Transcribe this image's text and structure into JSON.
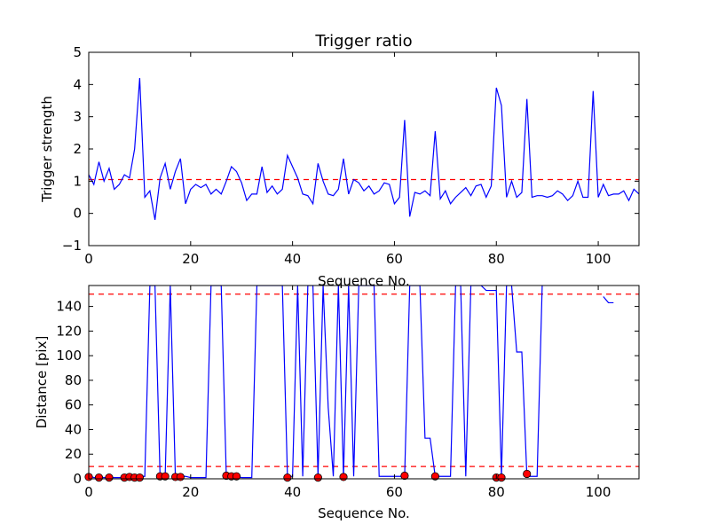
{
  "chart_data": [
    {
      "type": "line",
      "title": "Trigger ratio",
      "xlabel": "Sequence No.",
      "ylabel": "Trigger strength",
      "xlim": [
        0,
        108
      ],
      "ylim": [
        -1,
        5
      ],
      "xticks": [
        "0",
        "20",
        "40",
        "60",
        "80",
        "100"
      ],
      "yticks": [
        "−1",
        "0",
        "1",
        "2",
        "3",
        "4",
        "5"
      ],
      "grid": false,
      "threshold_line": {
        "y": 1.05,
        "color": "#ff0000",
        "style": "dashed"
      },
      "series": [
        {
          "color": "#0000ff",
          "x": [
            0,
            1,
            2,
            3,
            4,
            5,
            6,
            7,
            8,
            9,
            10,
            11,
            12,
            13,
            14,
            15,
            16,
            17,
            18,
            19,
            20,
            21,
            22,
            23,
            24,
            25,
            26,
            27,
            28,
            29,
            30,
            31,
            32,
            33,
            34,
            35,
            36,
            37,
            38,
            39,
            40,
            41,
            42,
            43,
            44,
            45,
            46,
            47,
            48,
            49,
            50,
            51,
            52,
            53,
            54,
            55,
            56,
            57,
            58,
            59,
            60,
            61,
            62,
            63,
            64,
            65,
            66,
            67,
            68,
            69,
            70,
            71,
            72,
            73,
            74,
            75,
            76,
            77,
            78,
            79,
            80,
            81,
            82,
            83,
            84,
            85,
            86,
            87,
            88,
            89,
            90,
            91,
            92,
            93,
            94,
            95,
            96,
            97,
            98,
            99,
            100,
            101,
            102,
            103,
            104,
            105,
            106,
            107,
            108
          ],
          "y": [
            1.2,
            0.9,
            1.6,
            1.0,
            1.4,
            0.75,
            0.9,
            1.2,
            1.1,
            2.0,
            4.2,
            0.5,
            0.7,
            -0.2,
            1.1,
            1.55,
            0.75,
            1.3,
            1.7,
            0.3,
            0.75,
            0.9,
            0.8,
            0.9,
            0.6,
            0.75,
            0.6,
            1.0,
            1.45,
            1.3,
            0.95,
            0.4,
            0.6,
            0.6,
            1.45,
            0.65,
            0.85,
            0.6,
            0.75,
            1.8,
            1.45,
            1.1,
            0.6,
            0.55,
            0.3,
            1.55,
            1.0,
            0.6,
            0.55,
            0.75,
            1.7,
            0.6,
            1.05,
            0.95,
            0.7,
            0.85,
            0.6,
            0.7,
            0.95,
            0.9,
            0.3,
            0.5,
            2.9,
            -0.1,
            0.65,
            0.6,
            0.7,
            0.55,
            2.55,
            0.45,
            0.7,
            0.3,
            0.5,
            0.65,
            0.8,
            0.55,
            0.85,
            0.9,
            0.5,
            0.85,
            3.9,
            3.35,
            0.5,
            1.0,
            0.5,
            0.65,
            3.55,
            0.5,
            0.55,
            0.55,
            0.5,
            0.55,
            0.7,
            0.6,
            0.4,
            0.55,
            1.0,
            0.5,
            0.5,
            3.8,
            0.5,
            0.9,
            0.55,
            0.6,
            0.6,
            0.7,
            0.4,
            0.75,
            0.6
          ]
        }
      ]
    },
    {
      "type": "line",
      "title": "",
      "xlabel": "Sequence No.",
      "ylabel": "Distance [pix]",
      "xlim": [
        0,
        108
      ],
      "ylim": [
        0,
        157
      ],
      "xticks": [
        "0",
        "20",
        "40",
        "60",
        "80",
        "100"
      ],
      "yticks": [
        "0",
        "20",
        "40",
        "60",
        "80",
        "100",
        "120",
        "140"
      ],
      "grid": false,
      "threshold_lines": [
        {
          "y": 150,
          "color": "#ff0000",
          "style": "dashed"
        },
        {
          "y": 10,
          "color": "#ff0000",
          "style": "dashed"
        }
      ],
      "series": [
        {
          "color": "#0000ff",
          "x": [
            0,
            1,
            2,
            3,
            4,
            5,
            6,
            7,
            8,
            9,
            10,
            11,
            12,
            13,
            14,
            15,
            16,
            17,
            18,
            19,
            20,
            21,
            22,
            23,
            24,
            25,
            26,
            27,
            28,
            29,
            30,
            31,
            32,
            33,
            34,
            35,
            36,
            37,
            38,
            39,
            40,
            41,
            42,
            43,
            44,
            45,
            46,
            47,
            48,
            49,
            50,
            51,
            52,
            53,
            54,
            55,
            56,
            57,
            58,
            59,
            60,
            61,
            62,
            63,
            64,
            65,
            66,
            67,
            68,
            69,
            70,
            71,
            72,
            73,
            74,
            75,
            76,
            77,
            78,
            79,
            80,
            81,
            82,
            83,
            84,
            85,
            86,
            87,
            88,
            89,
            90,
            91,
            92,
            93,
            94,
            95,
            96,
            97,
            98,
            99,
            100,
            101,
            102,
            103
          ],
          "y": [
            3,
            1,
            1,
            1,
            1,
            1,
            1,
            1,
            2,
            2,
            2,
            2,
            157,
            157,
            2,
            2,
            157,
            2,
            2,
            2,
            1,
            1,
            1,
            1,
            157,
            157,
            157,
            2,
            2,
            2,
            1,
            1,
            1,
            157,
            157,
            157,
            157,
            157,
            157,
            2,
            2,
            157,
            2,
            157,
            157,
            2,
            157,
            58,
            2,
            157,
            2,
            157,
            2,
            157,
            157,
            157,
            157,
            2,
            2,
            2,
            2,
            2,
            2,
            157,
            157,
            157,
            33,
            33,
            2,
            2,
            2,
            2,
            157,
            157,
            2,
            157,
            157,
            157,
            153,
            153,
            153,
            2,
            157,
            157,
            103,
            103,
            2,
            2,
            2,
            157,
            null,
            null,
            null,
            null,
            null,
            null,
            null,
            null,
            null,
            null,
            null,
            148,
            143,
            143
          ]
        }
      ],
      "markers": {
        "color": "#ff0000",
        "x": [
          0,
          2,
          4,
          7,
          8,
          9,
          10,
          14,
          15,
          17,
          18,
          27,
          28,
          29,
          39,
          45,
          50,
          62,
          68,
          80,
          81,
          86
        ],
        "y": [
          1.5,
          1,
          1,
          1,
          1.5,
          1,
          1,
          2,
          2,
          1.5,
          1.5,
          2.5,
          2,
          2,
          1,
          1,
          1.5,
          2.5,
          2,
          1,
          1,
          4
        ]
      }
    }
  ]
}
